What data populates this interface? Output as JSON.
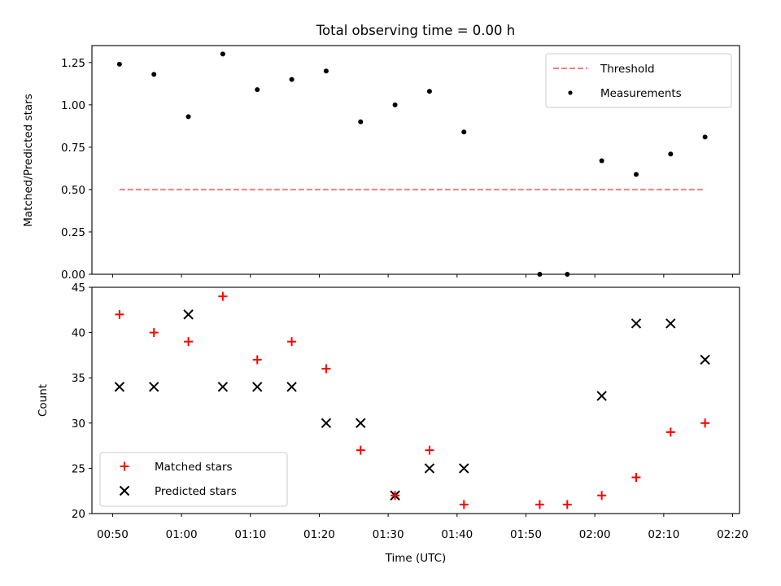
{
  "chart_data": [
    {
      "type": "scatter",
      "title": "Total observing time = 0.00 h",
      "xlabel": "",
      "ylabel": "Matched/Predicted stars",
      "xlim": [
        "00:47",
        "02:21"
      ],
      "ylim": [
        0,
        1.35
      ],
      "yticks": [
        0.0,
        0.25,
        0.5,
        0.75,
        1.0,
        1.25
      ],
      "ytick_labels": [
        "0.00",
        "0.25",
        "0.50",
        "0.75",
        "1.00",
        "1.25"
      ],
      "legend_position": "top-right",
      "grid": false,
      "series": [
        {
          "name": "Threshold",
          "kind": "dashed-line",
          "color": "#f08080",
          "x": [
            "00:51",
            "02:16"
          ],
          "y": [
            0.5,
            0.5
          ]
        },
        {
          "name": "Measurements",
          "kind": "dot",
          "color": "#000000",
          "x": [
            "00:51",
            "00:56",
            "01:01",
            "01:06",
            "01:11",
            "01:16",
            "01:21",
            "01:26",
            "01:31",
            "01:36",
            "01:41",
            "01:52",
            "01:56",
            "02:01",
            "02:06",
            "02:11",
            "02:16"
          ],
          "y": [
            1.24,
            1.18,
            0.93,
            1.3,
            1.09,
            1.15,
            1.2,
            0.9,
            1.0,
            1.08,
            0.84,
            0.0,
            0.0,
            0.67,
            0.59,
            0.71,
            0.81
          ]
        }
      ]
    },
    {
      "type": "scatter",
      "title": "",
      "xlabel": "Time (UTC)",
      "ylabel": "Count",
      "xlim": [
        "00:47",
        "02:21"
      ],
      "ylim": [
        20,
        45
      ],
      "xticks": [
        "00:50",
        "01:00",
        "01:10",
        "01:20",
        "01:30",
        "01:40",
        "01:50",
        "02:00",
        "02:10",
        "02:20"
      ],
      "yticks": [
        20,
        25,
        30,
        35,
        40,
        45
      ],
      "legend_position": "bottom-left",
      "grid": false,
      "series": [
        {
          "name": "Matched stars",
          "marker": "plus",
          "color": "#ff0000",
          "x": [
            "00:51",
            "00:56",
            "01:01",
            "01:06",
            "01:11",
            "01:16",
            "01:21",
            "01:26",
            "01:31",
            "01:36",
            "01:41",
            "01:52",
            "01:56",
            "02:01",
            "02:06",
            "02:11",
            "02:16"
          ],
          "y": [
            42,
            40,
            39,
            44,
            37,
            39,
            36,
            27,
            22,
            27,
            21,
            21,
            21,
            22,
            24,
            29,
            30
          ]
        },
        {
          "name": "Predicted stars",
          "marker": "x",
          "color": "#000000",
          "x": [
            "00:51",
            "00:56",
            "01:01",
            "01:06",
            "01:11",
            "01:16",
            "01:21",
            "01:26",
            "01:31",
            "01:36",
            "01:41",
            "02:01",
            "02:06",
            "02:11",
            "02:16"
          ],
          "y": [
            34,
            34,
            42,
            34,
            34,
            34,
            30,
            30,
            22,
            25,
            25,
            33,
            41,
            41,
            37
          ]
        }
      ]
    }
  ]
}
